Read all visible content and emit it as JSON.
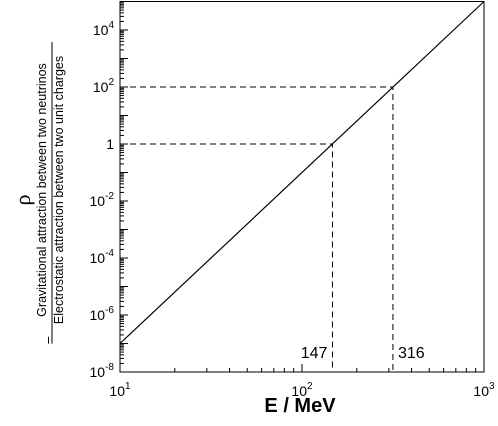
{
  "chart_data": {
    "type": "line",
    "x_label": "E / MeV",
    "y_label": {
      "symbol": "ρ",
      "equals": "=",
      "numerator": "Gravitational attraction between two neutrinos",
      "denominator": "Electrostatic attraction between two unit charges"
    },
    "x": [
      10,
      1000
    ],
    "series": [
      {
        "values": [
          1e-07,
          100000
        ],
        "color": "#000000"
      }
    ],
    "x_scale": "log",
    "y_scale": "log",
    "xlim": [
      10,
      1000
    ],
    "ylim": [
      1e-08,
      100000
    ],
    "xticks": [
      {
        "value": 10,
        "label": "10^1"
      },
      {
        "value": 100,
        "label": "10^2"
      },
      {
        "value": 1000,
        "label": "10^3"
      }
    ],
    "yticks": [
      {
        "value": 1e-08,
        "label": "10^-8"
      },
      {
        "value": 1e-06,
        "label": "10^-6"
      },
      {
        "value": 0.0001,
        "label": "10^-4"
      },
      {
        "value": 0.01,
        "label": "10^-2"
      },
      1,
      {
        "value": 100,
        "label": "10^2"
      },
      {
        "value": 10000,
        "label": "10^4"
      }
    ],
    "reference_points": [
      {
        "x": 147,
        "y": 1,
        "label": "147"
      },
      {
        "x": 316,
        "y": 100,
        "label": "316"
      }
    ]
  }
}
